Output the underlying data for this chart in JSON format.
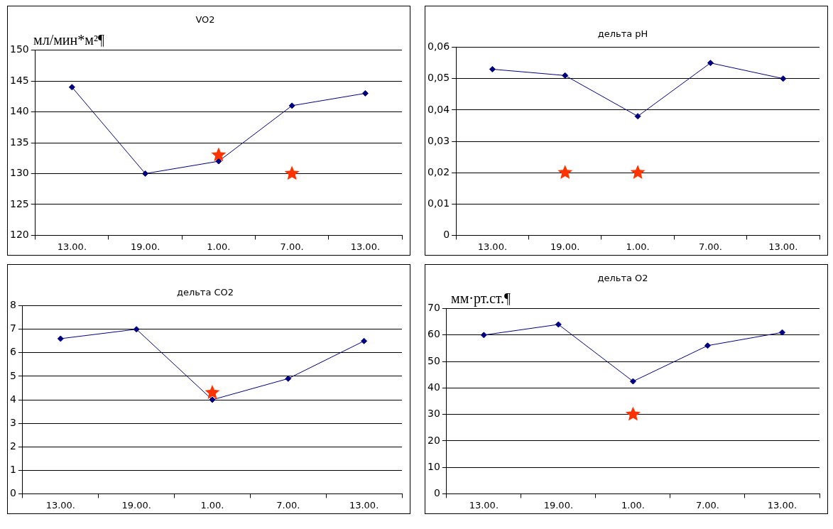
{
  "chart_data": [
    {
      "type": "line",
      "title": "VO2",
      "ylabel": "мл/мин*м²¶",
      "categories": [
        "13.00.",
        "19.00.",
        "1.00.",
        "7.00.",
        "13.00."
      ],
      "grid": "y",
      "ylim": [
        120,
        150
      ],
      "yticks": [
        120,
        125,
        130,
        135,
        140,
        145,
        150
      ],
      "series": [
        {
          "type": "line",
          "color": "#000080",
          "marker": "diamond",
          "values": [
            144,
            130,
            132,
            141,
            143
          ]
        },
        {
          "type": "scatter",
          "color": "#ff3300",
          "marker": "star",
          "x": [
            "1.00.",
            "7.00."
          ],
          "values": [
            133,
            130
          ]
        }
      ]
    },
    {
      "type": "line",
      "title": "дельта pH",
      "categories": [
        "13.00.",
        "19.00.",
        "1.00.",
        "7.00.",
        "13.00."
      ],
      "grid": "y",
      "ylim": [
        0,
        0.06
      ],
      "yticks": [
        0,
        {
          "value": 0.01,
          "label": "0,01"
        },
        {
          "value": 0.02,
          "label": "0,02"
        },
        {
          "value": 0.03,
          "label": "0,03"
        },
        {
          "value": 0.04,
          "label": "0,04"
        },
        {
          "value": 0.05,
          "label": "0,05"
        },
        {
          "value": 0.06,
          "label": "0,06"
        }
      ],
      "series": [
        {
          "type": "line",
          "color": "#000080",
          "marker": "diamond",
          "values": [
            0.053,
            0.051,
            0.038,
            0.055,
            0.05
          ]
        },
        {
          "type": "scatter",
          "color": "#ff3300",
          "marker": "star",
          "x": [
            "19.00.",
            "1.00."
          ],
          "values": [
            0.02,
            0.02
          ]
        }
      ]
    },
    {
      "type": "line",
      "title": "дельта CO2",
      "categories": [
        "13.00.",
        "19.00.",
        "1.00.",
        "7.00.",
        "13.00."
      ],
      "grid": "y",
      "ylim": [
        0,
        8
      ],
      "yticks": [
        0,
        1,
        2,
        3,
        4,
        5,
        6,
        7,
        8
      ],
      "series": [
        {
          "type": "line",
          "color": "#000080",
          "marker": "diamond",
          "values": [
            6.6,
            7.0,
            4.0,
            4.9,
            6.5
          ]
        },
        {
          "type": "scatter",
          "color": "#ff3300",
          "marker": "star",
          "x": [
            "1.00."
          ],
          "values": [
            4.3
          ]
        }
      ]
    },
    {
      "type": "line",
      "title": "дельта O2",
      "ylabel": "мм·рт.ст.¶",
      "categories": [
        "13.00.",
        "19.00.",
        "1.00.",
        "7.00.",
        "13.00."
      ],
      "grid": "y",
      "ylim": [
        0,
        70
      ],
      "yticks": [
        0,
        10,
        20,
        30,
        40,
        50,
        60,
        70
      ],
      "series": [
        {
          "type": "line",
          "color": "#000080",
          "marker": "diamond",
          "values": [
            60,
            64,
            42.5,
            56,
            61
          ]
        },
        {
          "type": "scatter",
          "color": "#ff3300",
          "marker": "star",
          "x": [
            "1.00."
          ],
          "values": [
            30
          ]
        }
      ]
    }
  ]
}
